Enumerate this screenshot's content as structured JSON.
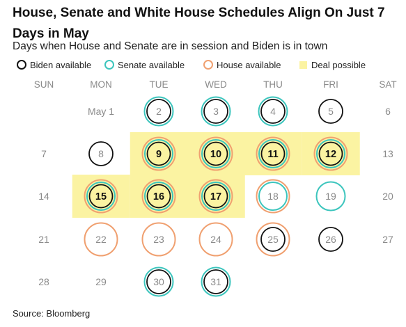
{
  "title": "House, Senate and White House Schedules Align On Just 7 Days in May",
  "subtitle": "Days when House and Senate are in session and Biden is in town",
  "legend": [
    {
      "label": "Biden available",
      "color": "#111111",
      "kind": "ring"
    },
    {
      "label": "Senate available",
      "color": "#3cc5bd",
      "kind": "ring"
    },
    {
      "label": "House available",
      "color": "#f0a070",
      "kind": "ring"
    },
    {
      "label": "Deal possible",
      "color": "#fbf3a2",
      "kind": "box"
    }
  ],
  "weekdays": [
    "SUN",
    "MON",
    "TUE",
    "WED",
    "THU",
    "FRI",
    "SAT"
  ],
  "source": "Source: Bloomberg",
  "colors": {
    "biden": "#111111",
    "senate": "#3cc5bd",
    "house": "#f0a070",
    "deal": "#fbf3a2",
    "muted_text": "#8a8a8a"
  },
  "chart_data": {
    "type": "table",
    "month": "May",
    "days": [
      {
        "label": "May 1",
        "weekday": "MON",
        "week": 0,
        "biden": false,
        "senate": false,
        "house": false,
        "deal": false
      },
      {
        "label": "2",
        "weekday": "TUE",
        "week": 0,
        "biden": true,
        "senate": true,
        "house": false,
        "deal": false
      },
      {
        "label": "3",
        "weekday": "WED",
        "week": 0,
        "biden": true,
        "senate": true,
        "house": false,
        "deal": false
      },
      {
        "label": "4",
        "weekday": "THU",
        "week": 0,
        "biden": true,
        "senate": true,
        "house": false,
        "deal": false
      },
      {
        "label": "5",
        "weekday": "FRI",
        "week": 0,
        "biden": true,
        "senate": false,
        "house": false,
        "deal": false
      },
      {
        "label": "6",
        "weekday": "SAT",
        "week": 0,
        "biden": false,
        "senate": false,
        "house": false,
        "deal": false
      },
      {
        "label": "7",
        "weekday": "SUN",
        "week": 1,
        "biden": false,
        "senate": false,
        "house": false,
        "deal": false
      },
      {
        "label": "8",
        "weekday": "MON",
        "week": 1,
        "biden": true,
        "senate": false,
        "house": false,
        "deal": false
      },
      {
        "label": "9",
        "weekday": "TUE",
        "week": 1,
        "biden": true,
        "senate": true,
        "house": true,
        "deal": true
      },
      {
        "label": "10",
        "weekday": "WED",
        "week": 1,
        "biden": true,
        "senate": true,
        "house": true,
        "deal": true
      },
      {
        "label": "11",
        "weekday": "THU",
        "week": 1,
        "biden": true,
        "senate": true,
        "house": true,
        "deal": true
      },
      {
        "label": "12",
        "weekday": "FRI",
        "week": 1,
        "biden": true,
        "senate": true,
        "house": true,
        "deal": true
      },
      {
        "label": "13",
        "weekday": "SAT",
        "week": 1,
        "biden": false,
        "senate": false,
        "house": false,
        "deal": false
      },
      {
        "label": "14",
        "weekday": "SUN",
        "week": 2,
        "biden": false,
        "senate": false,
        "house": false,
        "deal": false
      },
      {
        "label": "15",
        "weekday": "MON",
        "week": 2,
        "biden": true,
        "senate": true,
        "house": true,
        "deal": true
      },
      {
        "label": "16",
        "weekday": "TUE",
        "week": 2,
        "biden": true,
        "senate": true,
        "house": true,
        "deal": true
      },
      {
        "label": "17",
        "weekday": "WED",
        "week": 2,
        "biden": true,
        "senate": true,
        "house": true,
        "deal": true
      },
      {
        "label": "18",
        "weekday": "THU",
        "week": 2,
        "biden": false,
        "senate": true,
        "house": true,
        "deal": false
      },
      {
        "label": "19",
        "weekday": "FRI",
        "week": 2,
        "biden": false,
        "senate": true,
        "house": false,
        "deal": false
      },
      {
        "label": "20",
        "weekday": "SAT",
        "week": 2,
        "biden": false,
        "senate": false,
        "house": false,
        "deal": false
      },
      {
        "label": "21",
        "weekday": "SUN",
        "week": 3,
        "biden": false,
        "senate": false,
        "house": false,
        "deal": false
      },
      {
        "label": "22",
        "weekday": "MON",
        "week": 3,
        "biden": false,
        "senate": false,
        "house": true,
        "deal": false
      },
      {
        "label": "23",
        "weekday": "TUE",
        "week": 3,
        "biden": false,
        "senate": false,
        "house": true,
        "deal": false
      },
      {
        "label": "24",
        "weekday": "WED",
        "week": 3,
        "biden": false,
        "senate": false,
        "house": true,
        "deal": false
      },
      {
        "label": "25",
        "weekday": "THU",
        "week": 3,
        "biden": true,
        "senate": false,
        "house": true,
        "deal": false
      },
      {
        "label": "26",
        "weekday": "FRI",
        "week": 3,
        "biden": true,
        "senate": false,
        "house": false,
        "deal": false
      },
      {
        "label": "27",
        "weekday": "SAT",
        "week": 3,
        "biden": false,
        "senate": false,
        "house": false,
        "deal": false
      },
      {
        "label": "28",
        "weekday": "SUN",
        "week": 4,
        "biden": false,
        "senate": false,
        "house": false,
        "deal": false
      },
      {
        "label": "29",
        "weekday": "MON",
        "week": 4,
        "biden": false,
        "senate": false,
        "house": false,
        "deal": false
      },
      {
        "label": "30",
        "weekday": "TUE",
        "week": 4,
        "biden": true,
        "senate": true,
        "house": false,
        "deal": false
      },
      {
        "label": "31",
        "weekday": "WED",
        "week": 4,
        "biden": true,
        "senate": true,
        "house": false,
        "deal": false
      }
    ]
  }
}
